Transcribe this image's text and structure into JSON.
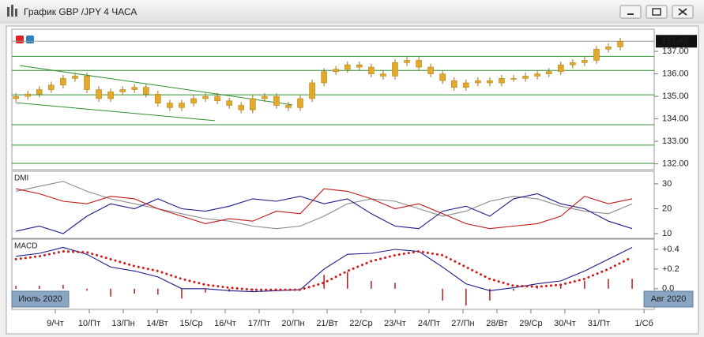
{
  "window": {
    "title": "График GBP /JPY  4 ЧАСА"
  },
  "chart_data": [
    {
      "type": "candlestick",
      "color": "#e3a92a",
      "level_color": "#2f8f2f",
      "xlim": [
        -1.28,
        17.63
      ],
      "ylim": [
        131.74,
        137.88
      ],
      "yticks": [
        {
          "value": 137,
          "label": "137.00"
        },
        {
          "value": 136,
          "label": "136.00"
        },
        {
          "value": 135,
          "label": "135.00"
        },
        {
          "value": 134,
          "label": "134.00"
        },
        {
          "value": 133,
          "label": "133.00"
        },
        {
          "value": 132,
          "label": "132.00"
        }
      ],
      "last_price": 137.45,
      "levels": [
        136.78,
        136.15,
        135.07,
        133.74,
        132.83,
        132.02
      ],
      "trendlines": [
        {
          "x": [
            -1.05,
            6.98
          ],
          "y": [
            136.37,
            134.62
          ]
        },
        {
          "x": [
            -1.16,
            4.7
          ],
          "y": [
            134.72,
            133.92
          ]
        }
      ],
      "x": [
        -1.16,
        -0.81,
        -0.47,
        -0.12,
        0.23,
        0.58,
        0.93,
        1.28,
        1.63,
        1.98,
        2.33,
        2.67,
        3.02,
        3.37,
        3.72,
        4.07,
        4.42,
        4.77,
        5.12,
        5.47,
        5.81,
        6.16,
        6.51,
        6.86,
        7.21,
        7.56,
        7.91,
        8.26,
        8.6,
        8.95,
        9.3,
        9.65,
        10.0,
        10.35,
        10.7,
        11.05,
        11.4,
        11.74,
        12.09,
        12.44,
        12.79,
        13.14,
        13.49,
        13.84,
        14.19,
        14.53,
        14.88,
        15.23,
        15.58,
        15.93,
        16.28,
        16.63
      ],
      "open": [
        134.9,
        135.0,
        135.1,
        135.3,
        135.5,
        135.8,
        135.9,
        135.3,
        134.9,
        135.2,
        135.3,
        135.4,
        135.1,
        134.7,
        134.5,
        134.7,
        134.9,
        135.0,
        134.8,
        134.6,
        134.4,
        134.9,
        135.0,
        134.6,
        134.5,
        134.9,
        135.6,
        136.1,
        136.2,
        136.4,
        136.3,
        136.0,
        135.9,
        136.5,
        136.6,
        136.3,
        136.0,
        135.7,
        135.4,
        135.6,
        135.7,
        135.6,
        135.8,
        135.8,
        135.9,
        136.0,
        136.1,
        136.4,
        136.5,
        136.6,
        137.1,
        137.2
      ],
      "high": [
        135.15,
        135.25,
        135.45,
        135.65,
        135.95,
        136.05,
        136.05,
        135.45,
        135.35,
        135.45,
        135.55,
        135.55,
        135.25,
        134.85,
        134.85,
        135.05,
        135.15,
        135.15,
        134.95,
        134.75,
        135.05,
        135.15,
        135.15,
        134.75,
        135.05,
        135.75,
        136.25,
        136.35,
        136.55,
        136.55,
        136.45,
        136.15,
        136.65,
        136.75,
        136.75,
        136.45,
        136.15,
        135.85,
        135.75,
        135.85,
        135.85,
        135.95,
        135.95,
        136.05,
        136.15,
        136.25,
        136.55,
        136.65,
        136.75,
        137.25,
        137.35,
        137.6
      ],
      "low": [
        134.75,
        134.85,
        134.95,
        135.15,
        135.35,
        135.65,
        135.15,
        134.75,
        134.75,
        135.05,
        135.15,
        134.95,
        134.55,
        134.35,
        134.35,
        134.55,
        134.75,
        134.65,
        134.45,
        134.25,
        134.25,
        134.75,
        134.45,
        134.35,
        134.35,
        134.75,
        135.45,
        135.95,
        136.05,
        136.15,
        135.85,
        135.75,
        135.75,
        136.35,
        136.15,
        135.85,
        135.55,
        135.25,
        135.25,
        135.45,
        135.45,
        135.45,
        135.65,
        135.65,
        135.75,
        135.85,
        135.95,
        136.25,
        136.35,
        136.45,
        136.95,
        137.05
      ],
      "close": [
        135.0,
        135.1,
        135.3,
        135.5,
        135.8,
        135.9,
        135.3,
        134.9,
        135.2,
        135.3,
        135.4,
        135.1,
        134.7,
        134.5,
        134.7,
        134.9,
        135.0,
        134.8,
        134.6,
        134.4,
        134.9,
        135.0,
        134.6,
        134.5,
        134.9,
        135.6,
        136.1,
        136.2,
        136.4,
        136.3,
        136.0,
        135.9,
        136.5,
        136.6,
        136.3,
        136.0,
        135.7,
        135.4,
        135.6,
        135.7,
        135.6,
        135.8,
        135.8,
        135.9,
        136.0,
        136.1,
        136.4,
        136.5,
        136.6,
        137.1,
        137.2,
        137.45
      ]
    },
    {
      "type": "line",
      "title": "DMI",
      "xlim": [
        -1.28,
        17.63
      ],
      "ylim": [
        8.1,
        34.1
      ],
      "yticks": [
        30,
        20,
        10
      ],
      "x": [
        -1.16,
        -0.47,
        0.23,
        0.93,
        1.63,
        2.33,
        3.02,
        3.72,
        4.42,
        5.12,
        5.81,
        6.51,
        7.21,
        7.91,
        8.6,
        9.3,
        10.0,
        10.7,
        11.4,
        12.09,
        12.79,
        13.49,
        14.19,
        14.88,
        15.58,
        16.28,
        16.98
      ],
      "series": [
        {
          "color": "#8a8a8a",
          "values": [
            27,
            29,
            31,
            27,
            24,
            22,
            20,
            18,
            16,
            15,
            13,
            12,
            13,
            17,
            22,
            24,
            23,
            20,
            17,
            19,
            23,
            25,
            24,
            21,
            19,
            18,
            22
          ]
        },
        {
          "color": "#1a1a8c",
          "values": [
            11,
            13,
            10,
            17,
            22,
            20,
            24,
            20,
            19,
            21,
            24,
            23,
            25,
            22,
            24,
            18,
            13,
            12,
            19,
            21,
            17,
            24,
            26,
            22,
            20,
            15,
            12
          ]
        },
        {
          "color": "#c01818",
          "values": [
            28,
            26,
            23,
            22,
            25,
            24,
            20,
            17,
            14,
            16,
            15,
            19,
            18,
            28,
            27,
            24,
            20,
            22,
            18,
            14,
            12,
            13,
            14,
            17,
            25,
            22,
            24
          ]
        }
      ]
    },
    {
      "type": "combo",
      "title": "MACD",
      "xlim": [
        -1.28,
        17.63
      ],
      "ylim": [
        -0.21,
        0.48
      ],
      "yticks": [
        {
          "value": 0.4,
          "label": "+0.4"
        },
        {
          "value": 0.2,
          "label": "+0.2"
        },
        {
          "value": 0,
          "label": "0.0"
        }
      ],
      "xticks": [
        {
          "value": 0,
          "label": "9/Чт"
        },
        {
          "value": 1,
          "label": "10/Пт"
        },
        {
          "value": 2,
          "label": "13/Пн"
        },
        {
          "value": 3,
          "label": "14/Вт"
        },
        {
          "value": 4,
          "label": "15/Ср"
        },
        {
          "value": 5,
          "label": "16/Чт"
        },
        {
          "value": 6,
          "label": "17/Пт"
        },
        {
          "value": 7,
          "label": "20/Пн"
        },
        {
          "value": 8,
          "label": "21/Вт"
        },
        {
          "value": 9,
          "label": "22/Ср"
        },
        {
          "value": 10,
          "label": "23/Чт"
        },
        {
          "value": 11,
          "label": "24/Пт"
        },
        {
          "value": 12,
          "label": "27/Пн"
        },
        {
          "value": 13,
          "label": "28/Вт"
        },
        {
          "value": 14,
          "label": "29/Ср"
        },
        {
          "value": 15,
          "label": "30/Чт"
        },
        {
          "value": 16,
          "label": "31/Пт"
        },
        {
          "value": 17.33,
          "label": "1/Сб"
        }
      ],
      "period_labels": [
        "Июль 2020",
        "Авг 2020"
      ],
      "x": [
        -1.16,
        -0.47,
        0.23,
        0.93,
        1.63,
        2.33,
        3.02,
        3.72,
        4.42,
        5.12,
        5.81,
        6.51,
        7.21,
        7.91,
        8.6,
        9.3,
        10.0,
        10.7,
        11.4,
        12.09,
        12.79,
        13.49,
        14.19,
        14.88,
        15.58,
        16.28,
        16.98
      ],
      "series": [
        {
          "kind": "bar",
          "color": "#c01818",
          "values": [
            0.03,
            0.03,
            0.04,
            -0.02,
            -0.08,
            -0.05,
            -0.06,
            -0.1,
            -0.04,
            -0.03,
            -0.02,
            -0.01,
            0,
            0.14,
            0.17,
            0.08,
            0.06,
            0,
            -0.12,
            -0.17,
            -0.12,
            -0.02,
            0.03,
            0.04,
            0.08,
            0.1,
            0.1
          ]
        },
        {
          "kind": "line",
          "color": "#1a1a8c",
          "values": [
            0.33,
            0.36,
            0.42,
            0.35,
            0.22,
            0.18,
            0.12,
            0.0,
            0.0,
            -0.02,
            -0.03,
            -0.02,
            -0.01,
            0.2,
            0.35,
            0.36,
            0.4,
            0.38,
            0.22,
            0.05,
            -0.02,
            0.01,
            0.05,
            0.08,
            0.18,
            0.3,
            0.42
          ]
        },
        {
          "kind": "dots",
          "color": "#d01a1a",
          "values": [
            0.3,
            0.33,
            0.38,
            0.37,
            0.3,
            0.23,
            0.18,
            0.1,
            0.04,
            0.01,
            -0.01,
            -0.01,
            -0.01,
            0.06,
            0.18,
            0.28,
            0.34,
            0.38,
            0.34,
            0.22,
            0.1,
            0.03,
            0.02,
            0.04,
            0.1,
            0.2,
            0.32
          ]
        }
      ]
    }
  ]
}
